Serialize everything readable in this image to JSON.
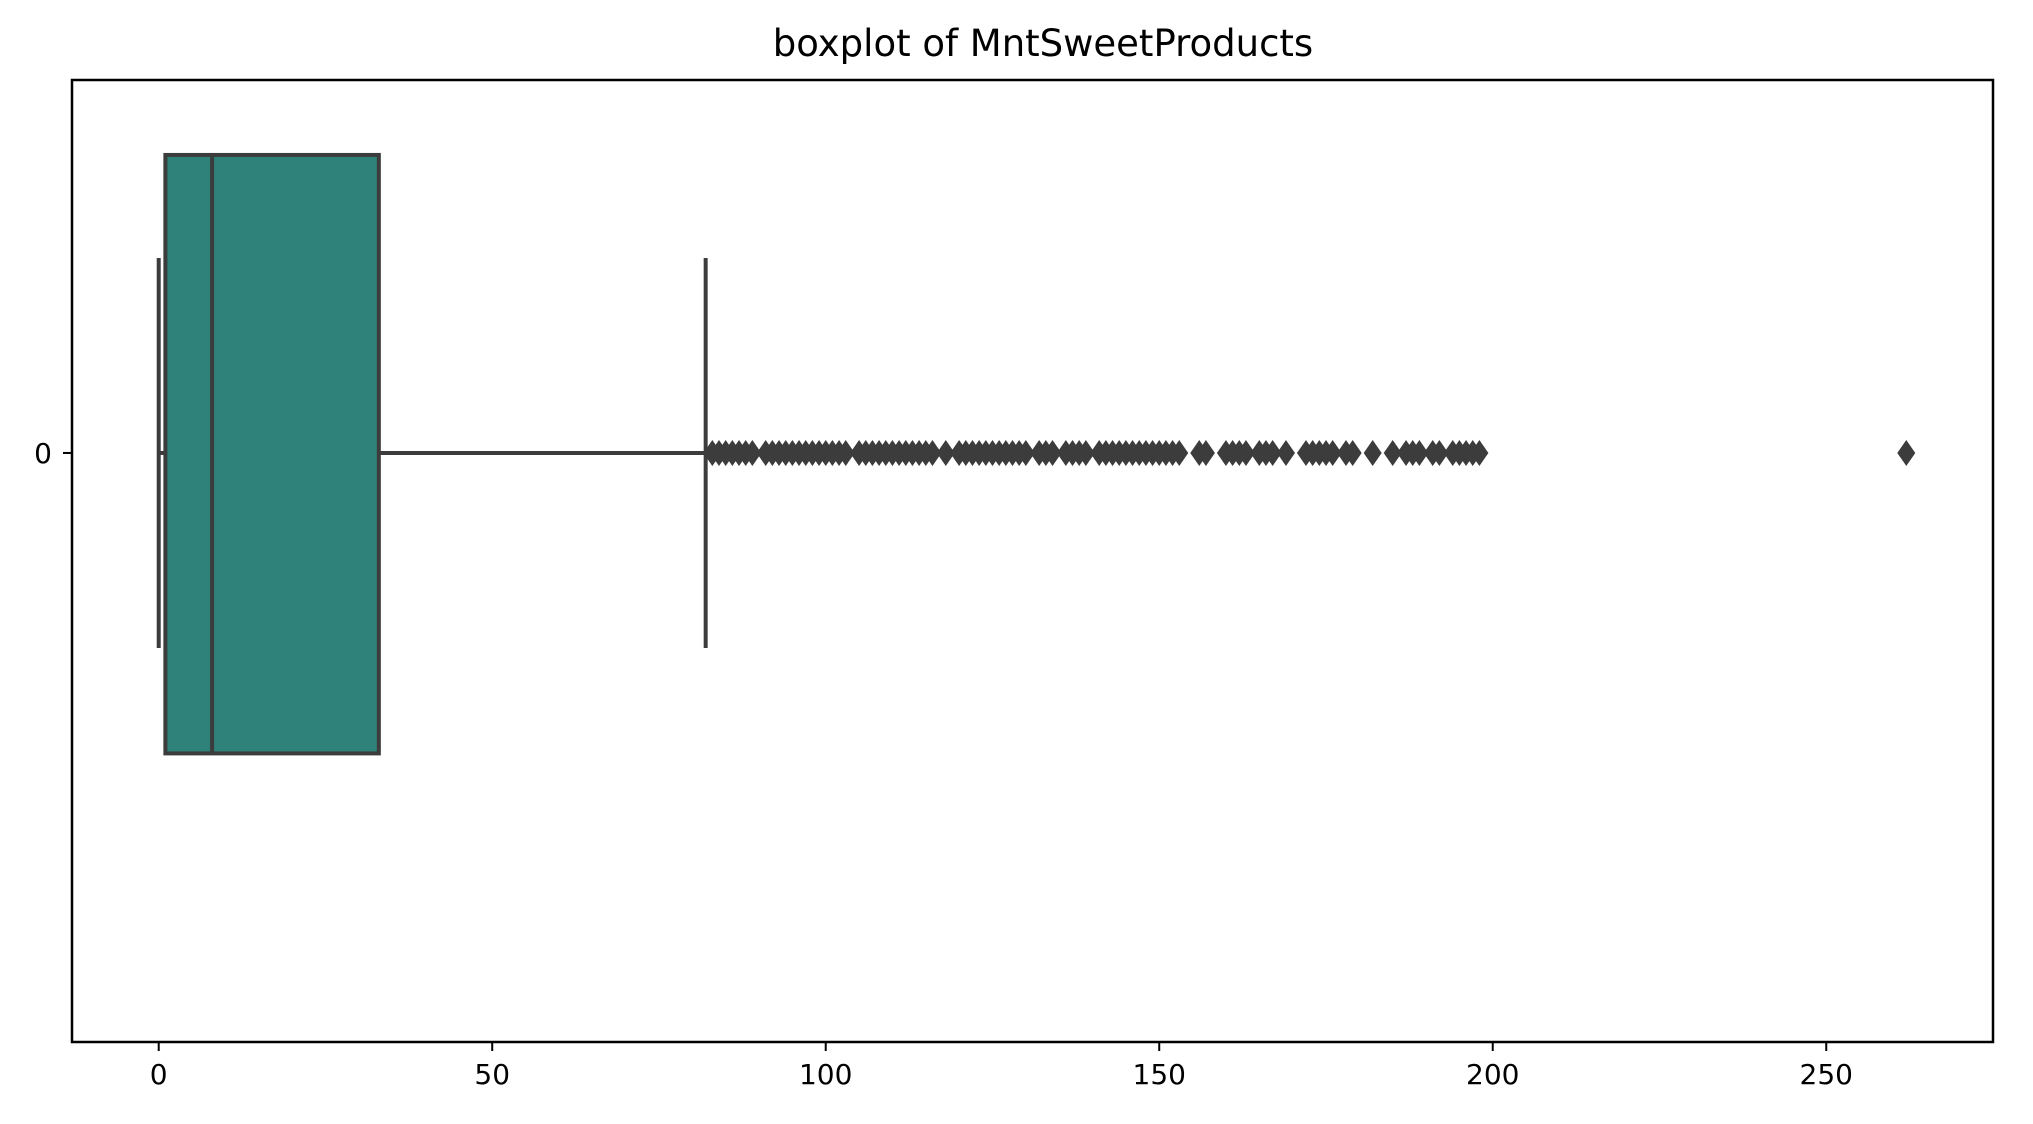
{
  "chart_data": {
    "type": "boxplot",
    "orientation": "horizontal",
    "title": "boxplot of MntSweetProducts",
    "xlabel": "",
    "ylabel": "",
    "xlim": [
      -13,
      275
    ],
    "x_ticks": [
      0,
      50,
      100,
      150,
      200,
      250
    ],
    "y_categories": [
      "0"
    ],
    "grid": false,
    "box_color": "#2e8279",
    "line_color": "#3c3c3c",
    "series": [
      {
        "category": "0",
        "whisker_low": 0,
        "q1": 1,
        "median": 8,
        "q3": 33,
        "whisker_high": 82,
        "outliers": [
          83,
          84,
          85,
          86,
          87,
          88,
          89,
          91,
          92,
          93,
          94,
          95,
          96,
          97,
          98,
          99,
          100,
          101,
          102,
          103,
          105,
          106,
          107,
          108,
          109,
          110,
          111,
          112,
          113,
          114,
          115,
          116,
          118,
          120,
          121,
          122,
          123,
          124,
          125,
          126,
          127,
          128,
          129,
          130,
          132,
          133,
          134,
          136,
          137,
          138,
          139,
          141,
          142,
          143,
          144,
          145,
          146,
          147,
          148,
          149,
          150,
          151,
          152,
          153,
          156,
          157,
          160,
          161,
          162,
          163,
          165,
          166,
          167,
          169,
          172,
          173,
          174,
          175,
          176,
          178,
          179,
          182,
          185,
          187,
          188,
          189,
          191,
          192,
          194,
          195,
          196,
          197,
          198,
          262
        ]
      }
    ]
  }
}
